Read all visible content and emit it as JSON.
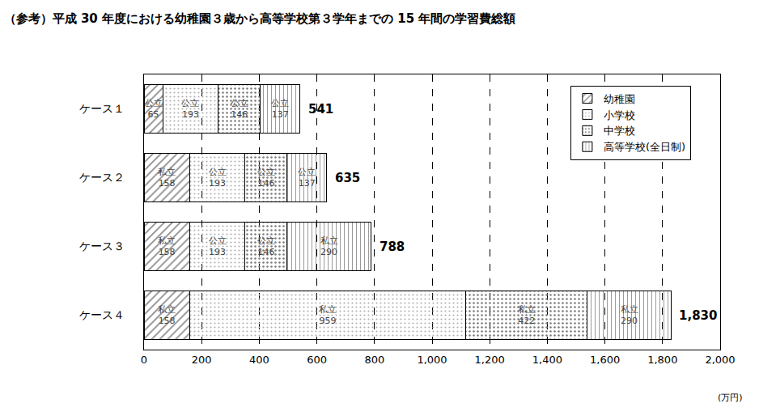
{
  "chart_data": {
    "type": "bar",
    "orientation": "horizontal",
    "stacked": true,
    "data_labels": true,
    "grid": true,
    "legend": "upper right",
    "title": "（参考）平成 30 年度における幼稚園３歳から高等学校第３学年までの 15 年間の学習費総額",
    "xlabel": "(万円)",
    "categories": [
      "ケース１",
      "ケース２",
      "ケース３",
      "ケース４"
    ],
    "series": [
      {
        "name": "幼稚園",
        "color": "#ffffff",
        "values": [
          65,
          158,
          158,
          158
        ],
        "value_labels": [
          "公立\n65",
          "私立\n158",
          "私立\n158",
          "私立\n158"
        ]
      },
      {
        "name": "小学校",
        "color": "#ffffff",
        "values": [
          193,
          193,
          193,
          959
        ],
        "value_labels": [
          "公立\n193",
          "公立\n193",
          "公立\n193",
          "私立\n959"
        ]
      },
      {
        "name": "中学校",
        "color": "#bfbfbf",
        "values": [
          146,
          146,
          146,
          422
        ],
        "value_labels": [
          "公立\n146",
          "公立\n146",
          "公立\n146",
          "私立\n422"
        ]
      },
      {
        "name": "高等学校(全日制)",
        "color": "#ffffff",
        "values": [
          137,
          137,
          290,
          290
        ],
        "value_labels": [
          "公立\n137",
          "公立\n137",
          "私立\n290",
          "私立\n290"
        ]
      }
    ],
    "totals": {
      "values": [
        541,
        635,
        788,
        1830
      ],
      "value_labels": [
        "541",
        "635",
        "788",
        "1,830"
      ]
    },
    "xlim": [
      0,
      2000
    ],
    "xticks": [
      0,
      200,
      400,
      600,
      800,
      {
        "value": 1000,
        "label": "1,000"
      },
      {
        "value": 1200,
        "label": "1,200"
      },
      {
        "value": 1400,
        "label": "1,400"
      },
      {
        "value": 1600,
        "label": "1,600"
      },
      {
        "value": 1800,
        "label": "1,800"
      },
      {
        "value": 2000,
        "label": "2,000"
      }
    ]
  }
}
